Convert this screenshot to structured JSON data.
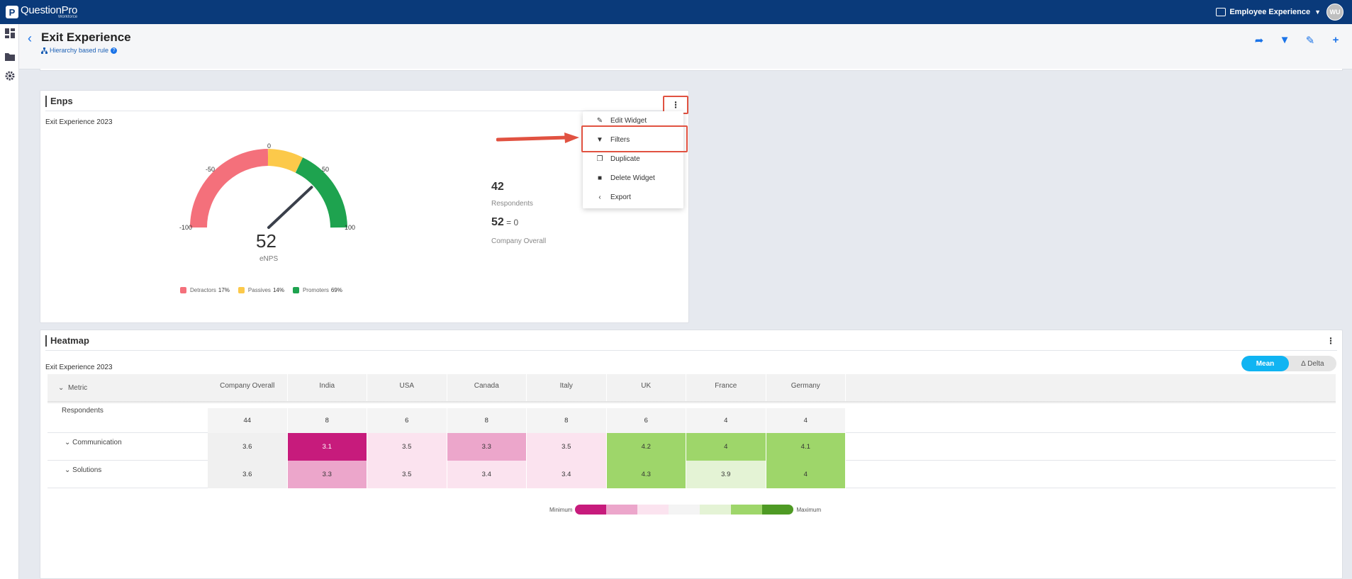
{
  "topbar": {
    "logo_letter": "P",
    "logo_text": "QuestionPro",
    "logo_sub": "Workforce",
    "product": "Employee Experience",
    "avatar": "WU"
  },
  "header": {
    "title": "Exit Experience",
    "rule": "Hierarchy based rule"
  },
  "enps": {
    "title": "Enps",
    "survey": "Exit Experience 2023",
    "gauge": {
      "value": 52,
      "min": -100,
      "max": 100,
      "name": "eNPS",
      "ticks": [
        "-100",
        "-50",
        "0",
        "50",
        "100"
      ]
    },
    "legend": [
      {
        "name": "Detractors",
        "pct": "17%",
        "color": "#f4707b"
      },
      {
        "name": "Passives",
        "pct": "14%",
        "color": "#fcc94a"
      },
      {
        "name": "Promoters",
        "pct": "69%",
        "color": "#1ea34f"
      }
    ],
    "respondents_value": "42",
    "respondents_label": "Respondents",
    "company_value": "52",
    "company_delta": "0",
    "company_label": "Company Overall"
  },
  "menu": {
    "items": [
      {
        "label": "Edit Widget",
        "icon": "pencil-icon"
      },
      {
        "label": "Filters",
        "icon": "filter-icon"
      },
      {
        "label": "Duplicate",
        "icon": "duplicate-icon"
      },
      {
        "label": "Delete Widget",
        "icon": "trash-icon"
      },
      {
        "label": "Export",
        "icon": "export-icon"
      }
    ]
  },
  "heatmap": {
    "title": "Heatmap",
    "survey": "Exit Experience 2023",
    "toggle": {
      "mean": "Mean",
      "delta": "∆ Delta",
      "selected": "Mean"
    },
    "metric_header": "Metric",
    "columns": [
      "Company Overall",
      "India",
      "USA",
      "Canada",
      "Italy",
      "UK",
      "France",
      "Germany"
    ],
    "rows": [
      {
        "label": "Respondents",
        "values": [
          "44",
          "8",
          "6",
          "8",
          "8",
          "6",
          "4",
          "4"
        ],
        "colors": [
          "#f0f0f0",
          "#f0f0f0",
          "#f0f0f0",
          "#f0f0f0",
          "#f0f0f0",
          "#f0f0f0",
          "#f0f0f0",
          "#f0f0f0"
        ]
      },
      {
        "label": "Communication",
        "values": [
          "3.6",
          "3.1",
          "3.5",
          "3.3",
          "3.5",
          "4.2",
          "4",
          "4.1"
        ],
        "colors": [
          "#f0f0f0",
          "#c71b7c",
          "#fbe3ef",
          "#eca6cb",
          "#fbe3ef",
          "#9ed66a",
          "#9ed66a",
          "#9ed66a"
        ]
      },
      {
        "label": "Solutions",
        "values": [
          "3.6",
          "3.3",
          "3.5",
          "3.4",
          "3.4",
          "4.3",
          "3.9",
          "4"
        ],
        "colors": [
          "#f0f0f0",
          "#eca6cb",
          "#fbe3ef",
          "#fbe3ef",
          "#fbe3ef",
          "#9ed66a",
          "#e4f3d5",
          "#9ed66a"
        ]
      }
    ],
    "scale": {
      "min": "Minimum",
      "max": "Maximum",
      "colors": [
        "#c71b7c",
        "#eca6cb",
        "#fbe3ef",
        "#f4f4f4",
        "#e4f3d5",
        "#9ed66a",
        "#4e9a24"
      ]
    }
  }
}
